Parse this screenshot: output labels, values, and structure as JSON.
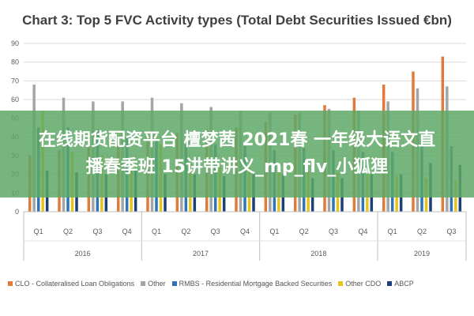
{
  "chart_data": {
    "type": "bar",
    "title": "Chart 3: Top 5 FVC Activity types (Total Debt Securities Issued €bn)",
    "ylim": [
      0,
      90
    ],
    "yticks": [
      "0",
      "10",
      "20",
      "30",
      "40",
      "50",
      "60",
      "70",
      "80",
      "90"
    ],
    "grid": true,
    "legend_position": "bottom",
    "categories": [
      "Q1",
      "Q2",
      "Q3",
      "Q4",
      "Q1",
      "Q2",
      "Q3",
      "Q4",
      "Q1",
      "Q2",
      "Q3",
      "Q4",
      "Q1",
      "Q2",
      "Q3"
    ],
    "year_groups": [
      {
        "label": "2016",
        "count": 4
      },
      {
        "label": "2017",
        "count": 4
      },
      {
        "label": "2018",
        "count": 4
      },
      {
        "label": "2019",
        "count": 3
      }
    ],
    "series": [
      {
        "name": "CLO - Collateralised Loan Obligations",
        "color": "#e07b39",
        "values": [
          30,
          33,
          35,
          38,
          40,
          42,
          44,
          45,
          48,
          52,
          57,
          61,
          68,
          75,
          83
        ]
      },
      {
        "name": "Other",
        "color": "#a5a5a5",
        "values": [
          68,
          61,
          59,
          59,
          61,
          58,
          56,
          54,
          53,
          53,
          55,
          54,
          59,
          66,
          67
        ]
      },
      {
        "name": "RMBS - Residential Mortgage Backed Securities",
        "color": "#2e75b6",
        "values": [
          45,
          45,
          44,
          40,
          38,
          38,
          36,
          35,
          33,
          34,
          33,
          32,
          32,
          38,
          35
        ]
      },
      {
        "name": "Other CDO",
        "color": "#e8c41a",
        "values": [
          54,
          32,
          30,
          28,
          36,
          26,
          25,
          24,
          23,
          22,
          21,
          20,
          19,
          18,
          17
        ]
      },
      {
        "name": "ABCP",
        "color": "#1f3e7a",
        "values": [
          22,
          21,
          20,
          22,
          20,
          20,
          19,
          20,
          20,
          18,
          18,
          20,
          20,
          26,
          25
        ]
      }
    ]
  },
  "banner": {
    "line1": "在线期货配资平台 檀梦茜 2021春 一年级大语文直",
    "line2": "播春季班 15讲带讲义_mp_flv_小狐狸"
  }
}
